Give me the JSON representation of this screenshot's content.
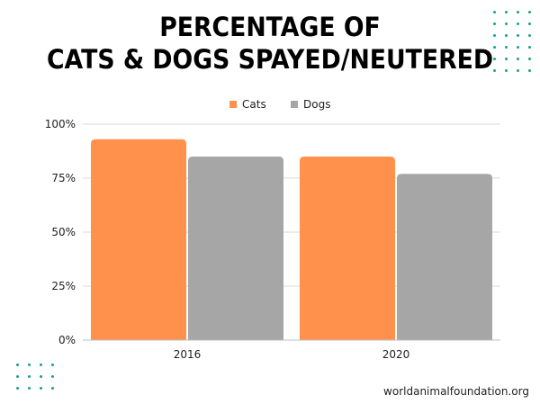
{
  "title_line1": "PERCENTAGE OF",
  "title_line2": "CATS & DOGS SPAYED/NEUTERED",
  "source": "worldanimalfoundation.org",
  "colors": {
    "cats": "#ff914d",
    "dogs": "#a6a6a6",
    "grid": "#d9d9d9",
    "dots": "#1aa08f"
  },
  "chart_data": {
    "type": "bar",
    "categories": [
      "2016",
      "2020"
    ],
    "series": [
      {
        "name": "Cats",
        "values": [
          93,
          85
        ]
      },
      {
        "name": "Dogs",
        "values": [
          85,
          77
        ]
      }
    ],
    "ylim": [
      0,
      100
    ],
    "yticks": [
      0,
      25,
      50,
      75,
      100
    ],
    "ytick_labels": [
      "0%",
      "25%",
      "50%",
      "75%",
      "100%"
    ],
    "legend": "top",
    "grid": true
  }
}
